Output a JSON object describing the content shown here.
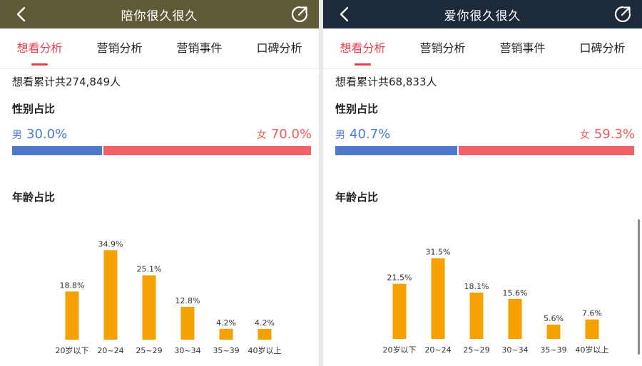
{
  "colors": {
    "left_header": "#5e5b36",
    "right_header": "#1d2a3c",
    "accent": "#ee3f4d",
    "male": "#4f79cf",
    "female": "#f2606a",
    "bar": "#f5a100"
  },
  "tabs": [
    "想看分析",
    "营销分析",
    "营销事件",
    "口碑分析"
  ],
  "panels": [
    {
      "title": "陪你很久很久",
      "total": "想看累计共274,849人",
      "gender_title": "性别占比",
      "male": {
        "tag": "男",
        "value": "30.0%",
        "share": 0.3
      },
      "female": {
        "tag": "女",
        "value": "70.0%",
        "share": 0.7
      },
      "age_title": "年龄占比",
      "chart_data": {
        "type": "bar",
        "categories": [
          "20岁以下",
          "20~24",
          "25~29",
          "30~34",
          "35~39",
          "40岁以上"
        ],
        "values": [
          18.8,
          34.9,
          25.1,
          12.8,
          4.2,
          4.2
        ],
        "labels": [
          "18.8%",
          "34.9%",
          "25.1%",
          "12.8%",
          "4.2%",
          "4.2%"
        ],
        "ylim": [
          0,
          35
        ]
      }
    },
    {
      "title": "爱你很久很久",
      "total": "想看累计共68,833人",
      "gender_title": "性别占比",
      "male": {
        "tag": "男",
        "value": "40.7%",
        "share": 0.407
      },
      "female": {
        "tag": "女",
        "value": "59.3%",
        "share": 0.593
      },
      "age_title": "年龄占比",
      "chart_data": {
        "type": "bar",
        "categories": [
          "20岁以下",
          "20~24",
          "25~29",
          "30~34",
          "35~39",
          "40岁以上"
        ],
        "values": [
          21.5,
          31.5,
          18.1,
          15.6,
          5.6,
          7.6
        ],
        "labels": [
          "21.5%",
          "31.5%",
          "18.1%",
          "15.6%",
          "5.6%",
          "7.6%"
        ],
        "ylim": [
          0,
          35
        ]
      }
    }
  ]
}
